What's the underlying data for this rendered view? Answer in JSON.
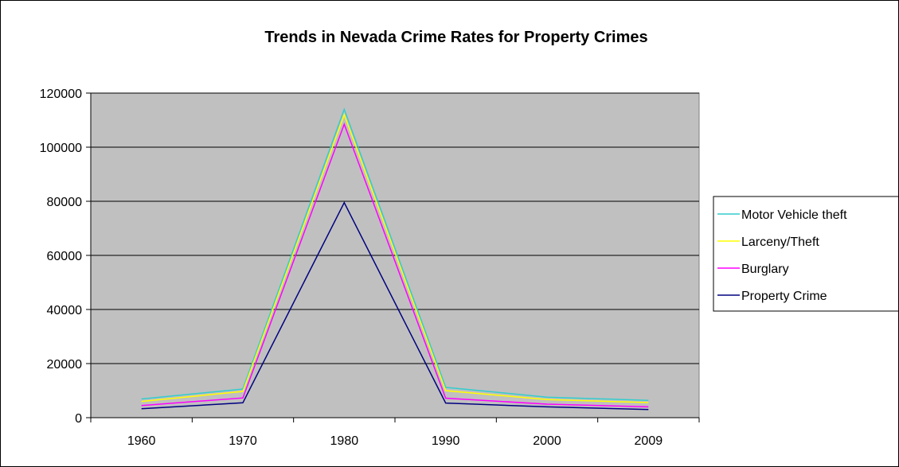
{
  "chart_data": {
    "type": "line",
    "title": "Trends in Nevada Crime Rates for Property Crimes",
    "xlabel": "",
    "ylabel": "",
    "categories": [
      "1960",
      "1970",
      "1980",
      "1990",
      "2000",
      "2009"
    ],
    "ylim": [
      0,
      120000
    ],
    "yticks": [
      "0",
      "20000",
      "40000",
      "60000",
      "80000",
      "100000",
      "120000"
    ],
    "grid": true,
    "legend_position": "right",
    "plot_background": "#c0c0c0",
    "series": [
      {
        "name": "Motor Vehicle theft",
        "color": "#33cccc",
        "values": [
          6900,
          10600,
          114000,
          11200,
          7600,
          6400
        ]
      },
      {
        "name": "Larceny/Theft",
        "color": "#ffff00",
        "values": [
          6000,
          9700,
          112000,
          10000,
          6700,
          5600
        ]
      },
      {
        "name": "Burglary",
        "color": "#ff00ff",
        "values": [
          4500,
          7300,
          108500,
          7200,
          5000,
          4000
        ]
      },
      {
        "name": "Property Crime",
        "color": "#000080",
        "values": [
          3300,
          5500,
          79500,
          5400,
          4000,
          3000
        ]
      }
    ]
  }
}
